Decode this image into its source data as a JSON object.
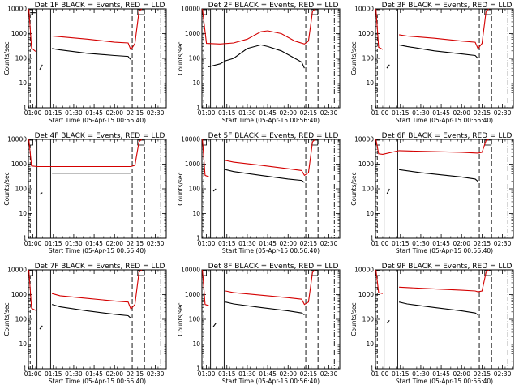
{
  "figure": {
    "y_axis_label": "Counts/sec",
    "x_axis_label": "Start Time (05-Apr-15 00:56:40)",
    "x_tick_labels": [
      "01:00",
      "01:15",
      "01:30",
      "01:45",
      "02:00",
      "02:15",
      "02:30"
    ],
    "y_tick_labels": [
      "1",
      "10",
      "100",
      "1000",
      "10000"
    ]
  },
  "chart_data": [
    {
      "type": "line",
      "title": "Det 1F BLACK = Events, RED = LLD",
      "xlabel": "Start Time (05-Apr-15 00:56:40)",
      "ylabel": "Counts/sec",
      "yscale": "log",
      "ylim": [
        1,
        10000
      ],
      "xlim": [
        "00:56:40",
        "02:38:00"
      ],
      "series": [
        {
          "name": "Events",
          "color": "#000000",
          "x": [
            "00:58",
            "01:02",
            "01:03",
            "01:05",
            "01:07",
            "01:14",
            "01:14",
            "01:20",
            "01:40",
            "02:00",
            "02:10",
            "02:11",
            "02:12"
          ],
          "y": [
            7000,
            7000,
            null,
            35,
            55,
            null,
            250,
            220,
            160,
            130,
            120,
            100,
            90
          ]
        },
        {
          "name": "LLD",
          "color": "#d40000",
          "x": [
            "00:57",
            "00:59",
            "01:02",
            "01:14",
            "01:14",
            "01:20",
            "01:40",
            "02:00",
            "02:10",
            "02:12",
            "02:15",
            "02:18",
            "02:20"
          ],
          "y": [
            10000,
            260,
            190,
            null,
            800,
            750,
            600,
            450,
            420,
            220,
            400,
            8000,
            10000
          ]
        }
      ]
    },
    {
      "type": "line",
      "title": "Det 2F BLACK = Events, RED = LLD",
      "xlabel": "Start Time (05-Apr-15 00:56:40)",
      "ylabel": "Counts/sec",
      "yscale": "log",
      "ylim": [
        1,
        10000
      ],
      "xlim": [
        "00:56:40",
        "02:38:00"
      ],
      "series": [
        {
          "name": "Events",
          "color": "#000000",
          "x": [
            "01:01",
            "01:10",
            "01:14",
            "01:20",
            "01:30",
            "01:40",
            "01:45",
            "01:55",
            "02:05",
            "02:10",
            "02:12"
          ],
          "y": [
            45,
            60,
            80,
            100,
            250,
            350,
            300,
            200,
            100,
            70,
            40
          ]
        },
        {
          "name": "LLD",
          "color": "#d40000",
          "x": [
            "00:57",
            "01:00",
            "01:10",
            "01:20",
            "01:30",
            "01:40",
            "01:45",
            "01:55",
            "02:05",
            "02:12",
            "02:15",
            "02:18",
            "02:20"
          ],
          "y": [
            10000,
            400,
            380,
            420,
            600,
            1200,
            1300,
            1000,
            500,
            380,
            500,
            8000,
            10000
          ]
        }
      ]
    },
    {
      "type": "line",
      "title": "Det 3F BLACK = Events, RED = LLD",
      "xlabel": "Start Time (05-Apr-15 00:56:40)",
      "ylabel": "Counts/sec",
      "yscale": "log",
      "ylim": [
        1,
        10000
      ],
      "xlim": [
        "00:56:40",
        "02:38:00"
      ],
      "series": [
        {
          "name": "Events",
          "color": "#000000",
          "x": [
            "01:05",
            "01:07",
            "01:14",
            "01:14",
            "01:20",
            "01:40",
            "02:00",
            "02:10",
            "02:12"
          ],
          "y": [
            40,
            55,
            null,
            350,
            300,
            200,
            150,
            130,
            100
          ]
        },
        {
          "name": "LLD",
          "color": "#d40000",
          "x": [
            "00:57",
            "00:59",
            "01:02",
            "01:14",
            "01:14",
            "01:20",
            "01:40",
            "02:00",
            "02:10",
            "02:12",
            "02:15",
            "02:18",
            "02:20"
          ],
          "y": [
            10000,
            280,
            230,
            null,
            900,
            800,
            650,
            500,
            450,
            250,
            400,
            8000,
            10000
          ]
        }
      ]
    },
    {
      "type": "line",
      "title": "Det 4F BLACK = Events, RED = LLD",
      "xlabel": "Start Time (05-Apr-15 00:56:40)",
      "ylabel": "Counts/sec",
      "yscale": "log",
      "ylim": [
        1,
        10000
      ],
      "xlim": [
        "00:56:40",
        "02:38:00"
      ],
      "series": [
        {
          "name": "Events",
          "color": "#000000",
          "x": [
            "01:05",
            "01:07",
            "01:14",
            "01:14",
            "01:30",
            "02:00",
            "02:12"
          ],
          "y": [
            60,
            70,
            null,
            430,
            430,
            430,
            430
          ]
        },
        {
          "name": "LLD",
          "color": "#d40000",
          "x": [
            "00:57",
            "00:59",
            "01:03",
            "01:30",
            "02:00",
            "02:12",
            "02:15",
            "02:18",
            "02:20"
          ],
          "y": [
            10000,
            850,
            800,
            800,
            800,
            800,
            900,
            8000,
            10000
          ]
        }
      ]
    },
    {
      "type": "line",
      "title": "Det 5F BLACK = Events, RED = LLD",
      "xlabel": "Start Time (05-Apr-15 00:56:40)",
      "ylabel": "Counts/sec",
      "yscale": "log",
      "ylim": [
        1,
        10000
      ],
      "xlim": [
        "00:56:40",
        "02:38:00"
      ],
      "series": [
        {
          "name": "Events",
          "color": "#000000",
          "x": [
            "01:05",
            "01:07",
            "01:14",
            "01:14",
            "01:20",
            "01:40",
            "02:00",
            "02:10",
            "02:12"
          ],
          "y": [
            80,
            100,
            null,
            600,
            500,
            350,
            250,
            220,
            180
          ]
        },
        {
          "name": "LLD",
          "color": "#d40000",
          "x": [
            "00:57",
            "00:59",
            "01:02",
            "01:14",
            "01:14",
            "01:20",
            "01:40",
            "02:00",
            "02:10",
            "02:12",
            "02:15",
            "02:18",
            "02:20"
          ],
          "y": [
            10000,
            350,
            300,
            null,
            1400,
            1200,
            900,
            650,
            550,
            350,
            450,
            8000,
            10000
          ]
        }
      ]
    },
    {
      "type": "line",
      "title": "Det 6F BLACK = Events, RED = LLD",
      "xlabel": "Start Time (05-Apr-15 00:56:40)",
      "ylabel": "Counts/sec",
      "yscale": "log",
      "ylim": [
        1,
        10000
      ],
      "xlim": [
        "00:56:40",
        "02:38:00"
      ],
      "series": [
        {
          "name": "Events",
          "color": "#000000",
          "x": [
            "01:05",
            "01:07",
            "01:14",
            "01:14",
            "01:30",
            "02:00",
            "02:10",
            "02:12"
          ],
          "y": [
            60,
            100,
            null,
            600,
            450,
            300,
            250,
            200
          ]
        },
        {
          "name": "LLD",
          "color": "#d40000",
          "x": [
            "00:57",
            "00:59",
            "01:02",
            "01:14",
            "01:30",
            "02:00",
            "02:12",
            "02:15",
            "02:18",
            "02:20"
          ],
          "y": [
            10000,
            2600,
            2500,
            3500,
            3300,
            3000,
            2800,
            3000,
            9000,
            10000
          ]
        }
      ]
    },
    {
      "type": "line",
      "title": "Det 7F BLACK = Events, RED = LLD",
      "xlabel": "Start Time (05-Apr-15 00:56:40)",
      "ylabel": "Counts/sec",
      "yscale": "log",
      "ylim": [
        1,
        10000
      ],
      "xlim": [
        "00:56:40",
        "02:38:00"
      ],
      "series": [
        {
          "name": "Events",
          "color": "#000000",
          "x": [
            "01:05",
            "01:07",
            "01:14",
            "01:14",
            "01:20",
            "01:40",
            "02:00",
            "02:10",
            "02:12"
          ],
          "y": [
            40,
            55,
            null,
            400,
            320,
            220,
            160,
            140,
            110
          ]
        },
        {
          "name": "LLD",
          "color": "#d40000",
          "x": [
            "00:57",
            "00:59",
            "01:02",
            "01:14",
            "01:14",
            "01:20",
            "01:40",
            "02:00",
            "02:10",
            "02:12",
            "02:15",
            "02:18",
            "02:20"
          ],
          "y": [
            10000,
            280,
            230,
            null,
            1100,
            900,
            700,
            550,
            500,
            260,
            400,
            8000,
            10000
          ]
        }
      ]
    },
    {
      "type": "line",
      "title": "Det 8F BLACK = Events, RED = LLD",
      "xlabel": "Start Time (05-Apr-15 00:56:40)",
      "ylabel": "Counts/sec",
      "yscale": "log",
      "ylim": [
        1,
        10000
      ],
      "xlim": [
        "00:56:40",
        "02:38:00"
      ],
      "series": [
        {
          "name": "Events",
          "color": "#000000",
          "x": [
            "01:05",
            "01:07",
            "01:14",
            "01:14",
            "01:20",
            "01:40",
            "02:00",
            "02:10",
            "02:12"
          ],
          "y": [
            50,
            70,
            null,
            500,
            420,
            300,
            220,
            180,
            150
          ]
        },
        {
          "name": "LLD",
          "color": "#d40000",
          "x": [
            "00:57",
            "00:59",
            "01:02",
            "01:14",
            "01:14",
            "01:20",
            "01:40",
            "02:00",
            "02:10",
            "02:12",
            "02:15",
            "02:18",
            "02:20"
          ],
          "y": [
            10000,
            400,
            350,
            null,
            1400,
            1200,
            950,
            750,
            650,
            400,
            500,
            8000,
            10000
          ]
        }
      ]
    },
    {
      "type": "line",
      "title": "Det 9F BLACK = Events, RED = LLD",
      "xlabel": "Start Time (05-Apr-15 00:56:40)",
      "ylabel": "Counts/sec",
      "yscale": "log",
      "ylim": [
        1,
        10000
      ],
      "xlim": [
        "00:56:40",
        "02:38:00"
      ],
      "series": [
        {
          "name": "Events",
          "color": "#000000",
          "x": [
            "01:05",
            "01:07",
            "01:14",
            "01:14",
            "01:20",
            "01:40",
            "02:00",
            "02:10",
            "02:12"
          ],
          "y": [
            70,
            90,
            null,
            500,
            420,
            300,
            220,
            180,
            150
          ]
        },
        {
          "name": "LLD",
          "color": "#d40000",
          "x": [
            "00:57",
            "00:59",
            "01:02",
            "01:14",
            "01:14",
            "01:30",
            "02:00",
            "02:10",
            "02:12",
            "02:15",
            "02:18",
            "02:20"
          ],
          "y": [
            10000,
            1200,
            1100,
            null,
            2000,
            1800,
            1500,
            1400,
            1300,
            1400,
            8000,
            10000
          ]
        }
      ]
    }
  ]
}
